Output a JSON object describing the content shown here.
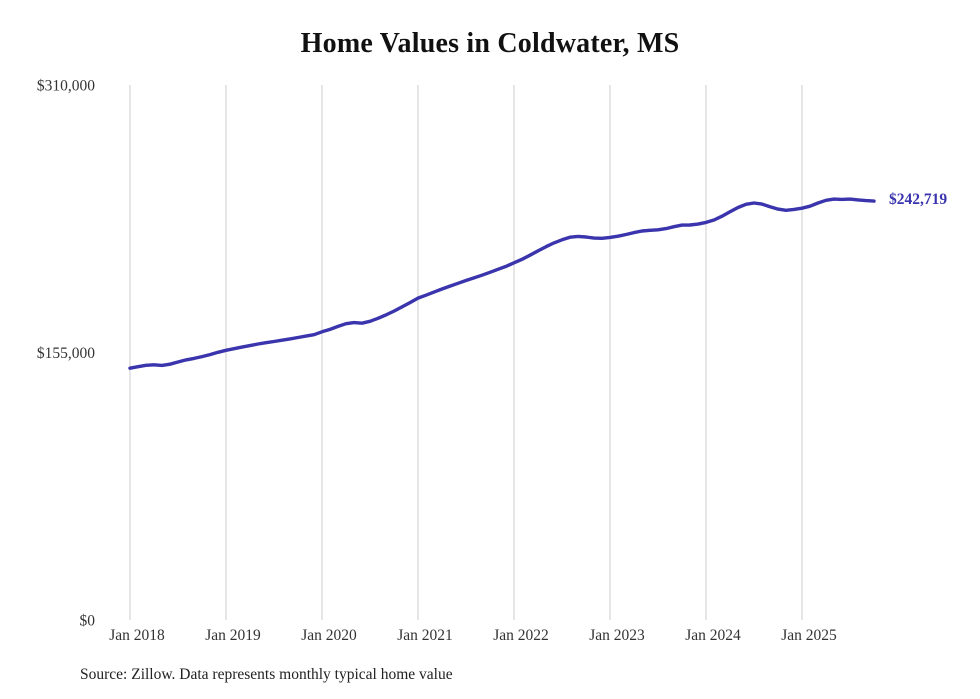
{
  "chart": {
    "title": "Home Values in Coldwater, MS",
    "source_note": "Source: Zillow. Data represents monthly typical home value",
    "end_label": "$242,719",
    "colors": {
      "line": "#3a34ad",
      "grid": "#cccccc",
      "tick_text": "#333333",
      "title_text": "#111111",
      "end_label_text": "#3a34ad"
    }
  },
  "chart_data": {
    "type": "line",
    "title": "Home Values in Coldwater, MS",
    "ylabel": "",
    "xlabel": "",
    "ylim": [
      0,
      310000
    ],
    "grid": "vertical-only",
    "legend": "none",
    "frequency": "monthly",
    "start_month": "2018-01",
    "end_month": "2025-10",
    "x_tick_labels": [
      "Jan 2018",
      "Jan 2019",
      "Jan 2020",
      "Jan 2021",
      "Jan 2022",
      "Jan 2023",
      "Jan 2024",
      "Jan 2025"
    ],
    "x_tick_month_indices": [
      0,
      12,
      24,
      36,
      48,
      60,
      72,
      84
    ],
    "y_ticks": [
      {
        "value": 0,
        "label": "$0"
      },
      {
        "value": 155000,
        "label": "$155,000"
      },
      {
        "value": 310000,
        "label": "$310,000"
      }
    ],
    "final_value": 242719,
    "series": [
      {
        "name": "Typical home value",
        "values": [
          145900,
          146800,
          147600,
          147900,
          147500,
          148200,
          149500,
          150700,
          151600,
          152600,
          153800,
          155100,
          156300,
          157200,
          158100,
          159000,
          159900,
          160700,
          161400,
          162100,
          162900,
          163700,
          164500,
          165300,
          167000,
          168400,
          170100,
          171700,
          172300,
          172000,
          173100,
          174800,
          176800,
          179000,
          181400,
          183900,
          186500,
          188200,
          190000,
          191800,
          193500,
          195100,
          196700,
          198200,
          199800,
          201500,
          203200,
          204900,
          207000,
          209000,
          211400,
          213900,
          216300,
          218500,
          220300,
          221800,
          222300,
          221900,
          221300,
          221200,
          221700,
          222400,
          223400,
          224500,
          225400,
          225800,
          226100,
          226800,
          227900,
          228800,
          228900,
          229400,
          230400,
          231800,
          234000,
          236500,
          239000,
          240900,
          241600,
          241000,
          239500,
          238100,
          237400,
          237900,
          238600,
          239800,
          241600,
          243200,
          243900,
          243700,
          243900,
          243400,
          243000,
          242719
        ]
      }
    ]
  }
}
